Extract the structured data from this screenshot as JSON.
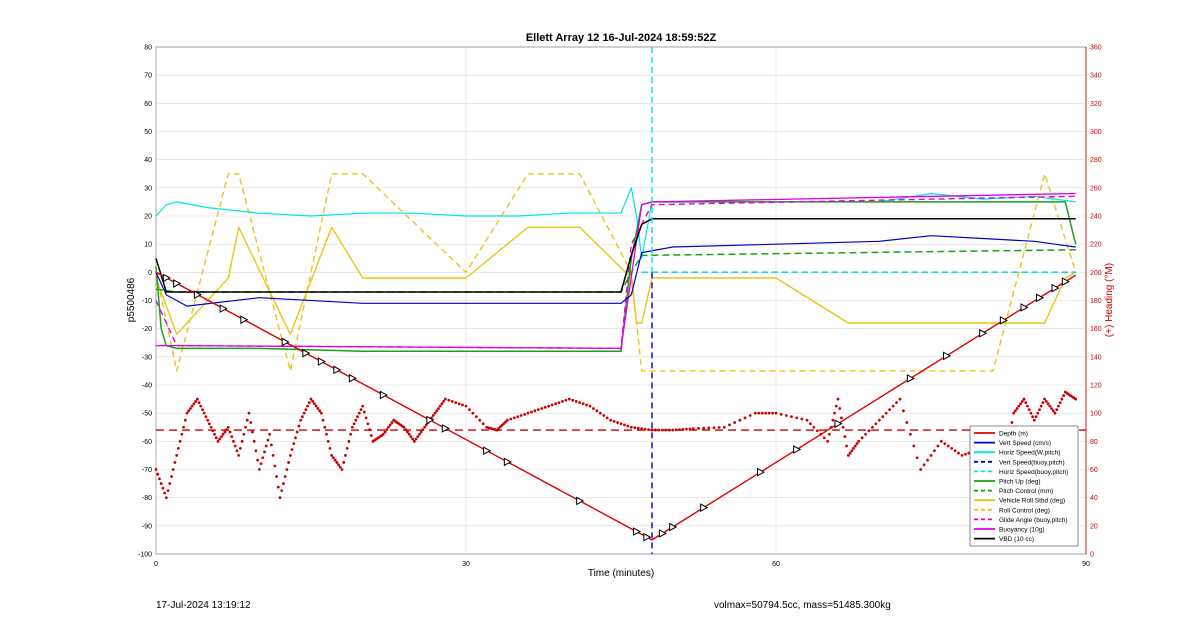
{
  "footer": {
    "left": "17-Jul-2024 13:19:12",
    "right": "volmax=50794.5cc, mass=51485.300kg"
  },
  "chart_data": {
    "type": "line",
    "title": "Ellett Array 12 16-Jul-2024 18:59:52Z",
    "xlabel": "Time (minutes)",
    "ylabel_left": "p5500486",
    "ylabel_right": "(+) Heading (°M)",
    "xlim": [
      0,
      90
    ],
    "ylim_left": [
      -100,
      80
    ],
    "ylim_right": [
      0,
      360
    ],
    "xticks": [
      0,
      30,
      60,
      90
    ],
    "yticks_left": [
      -100,
      -90,
      -80,
      -70,
      -60,
      -50,
      -40,
      -30,
      -20,
      -10,
      0,
      10,
      20,
      30,
      40,
      50,
      60,
      70,
      80
    ],
    "yticks_right": [
      0,
      20,
      40,
      60,
      80,
      100,
      120,
      140,
      160,
      180,
      200,
      220,
      240,
      260,
      280,
      300,
      320,
      340,
      360
    ],
    "apogee_time": 48,
    "heading_reference": 88,
    "colors": {
      "depth": "#dd0000",
      "vert": "#0000cc",
      "horiz": "#00e5e5",
      "pitch": "#1aa01a",
      "roll": "#e6c619",
      "glide": "#e000e0",
      "vbd": "#000000",
      "heading": "#cc0000",
      "right_axis": "#cc0000"
    },
    "legend": {
      "placement": "lower-right",
      "entries": [
        {
          "label": "Depth (m)",
          "color": "#dd0000",
          "dash": false
        },
        {
          "label": "Vert Speed (cm/s)",
          "color": "#0000cc",
          "dash": false
        },
        {
          "label": "Horiz Speed(W,pitch)",
          "color": "#00e5e5",
          "dash": false
        },
        {
          "label": "Vert Speed(buoy,pitch)",
          "color": "#0000cc",
          "dash": true
        },
        {
          "label": "Horiz Speed(buoy,pitch)",
          "color": "#00e5e5",
          "dash": true
        },
        {
          "label": "Pitch Up (deg)",
          "color": "#1aa01a",
          "dash": false
        },
        {
          "label": "Pitch Control (mm)",
          "color": "#1aa01a",
          "dash": true
        },
        {
          "label": "Vehicle Roll Stbd (deg)",
          "color": "#e6c619",
          "dash": false
        },
        {
          "label": "Roll Control (deg)",
          "color": "#e6c619",
          "dash": true
        },
        {
          "label": "Glide Angle (buoy,pitch)",
          "color": "#e000e0",
          "dash": true
        },
        {
          "label": "Buoyancy (10g)",
          "color": "#e000e0",
          "dash": false
        },
        {
          "label": "VBD (10 cc)",
          "color": "#000000",
          "dash": false
        }
      ]
    },
    "series": [
      {
        "name": "Depth (m)",
        "key": "depth",
        "x": [
          0,
          48,
          89
        ],
        "y": [
          0,
          -95,
          -1
        ]
      },
      {
        "name": "Vert Speed (cm/s)",
        "key": "vert",
        "x": [
          0,
          1,
          3,
          10,
          20,
          30,
          40,
          45,
          46,
          47,
          50,
          60,
          70,
          75,
          80,
          85,
          87,
          89
        ],
        "y": [
          0,
          -8,
          -12,
          -9,
          -11,
          -11,
          -11,
          -11,
          -8,
          7,
          9,
          10,
          11,
          13,
          12,
          11,
          10,
          9
        ]
      },
      {
        "name": "Horiz Speed(W,pitch)",
        "key": "horiz",
        "x": [
          0,
          1,
          2,
          5,
          10,
          15,
          20,
          25,
          30,
          35,
          40,
          45,
          46,
          46.5,
          47,
          48,
          55,
          60,
          70,
          75,
          80,
          85,
          89
        ],
        "y": [
          20,
          24,
          25,
          23,
          21,
          20,
          21,
          21,
          20,
          20,
          21,
          21,
          30,
          20,
          5,
          25,
          25,
          25,
          25,
          28,
          26,
          27,
          25
        ]
      },
      {
        "name": "Vert Speed(buoy,pitch)",
        "key": "vert_buoy",
        "x": [
          47,
          89
        ],
        "y": [
          0,
          0
        ]
      },
      {
        "name": "Horiz Speed(buoy,pitch)",
        "key": "horiz_buoy",
        "x": [
          47,
          89
        ],
        "y": [
          0,
          0
        ]
      },
      {
        "name": "Pitch Up (deg)",
        "key": "pitch",
        "x": [
          0,
          0.5,
          1,
          2,
          10,
          20,
          30,
          40,
          45,
          46,
          47,
          48,
          60,
          70,
          80,
          88,
          89
        ],
        "y": [
          2,
          -20,
          -26,
          -27,
          -27,
          -28,
          -28,
          -28,
          -28,
          5,
          24,
          25,
          25,
          25,
          25,
          25,
          10
        ]
      },
      {
        "name": "Pitch Control (mm)",
        "key": "pitch_ctrl",
        "x": [
          0,
          2,
          45,
          46,
          47,
          89
        ],
        "y": [
          -6,
          -7,
          -7,
          0,
          6,
          8
        ]
      },
      {
        "name": "Vehicle Roll Stbd (deg)",
        "key": "roll",
        "x": [
          0,
          2,
          7,
          8,
          13,
          17,
          20,
          30,
          36,
          41,
          46,
          46.5,
          47,
          48,
          50,
          60,
          67,
          73,
          81,
          86,
          88,
          89
        ],
        "y": [
          -2,
          -22,
          -2,
          16,
          -22,
          16,
          -2,
          -2,
          16,
          16,
          -2,
          -18,
          -18,
          -2,
          -2,
          -2,
          -18,
          -18,
          -18,
          -18,
          -2,
          0
        ]
      },
      {
        "name": "Roll Control (deg)",
        "key": "roll_ctrl",
        "x": [
          0,
          2,
          7,
          8,
          13,
          17,
          20,
          30,
          36,
          41,
          46,
          47,
          67,
          73,
          81,
          86,
          89
        ],
        "y": [
          0,
          -35,
          35,
          35,
          -35,
          35,
          35,
          0,
          35,
          35,
          0,
          -35,
          -35,
          -35,
          -35,
          35,
          0
        ]
      },
      {
        "name": "Glide Angle (buoy,pitch)",
        "key": "glide",
        "x": [
          0,
          2,
          45,
          46,
          48,
          89
        ],
        "y": [
          -10,
          -26,
          -27,
          10,
          24,
          27
        ]
      },
      {
        "name": "Buoyancy (10g)",
        "key": "buoyancy",
        "x": [
          0,
          2,
          45,
          47,
          48,
          89
        ],
        "y": [
          -26,
          -26,
          -27,
          24,
          25,
          28
        ]
      },
      {
        "name": "VBD (10 cc)",
        "key": "vbd",
        "x": [
          0,
          1,
          45,
          46,
          47,
          48,
          89
        ],
        "y": [
          5,
          -7,
          -7,
          6,
          17,
          19,
          19
        ]
      },
      {
        "name": "Heading (°M)",
        "key": "heading",
        "axis": "right",
        "x": [
          0,
          1,
          2,
          3,
          4,
          5,
          6,
          7,
          8,
          9,
          10,
          11,
          12,
          13,
          14,
          15,
          16,
          17,
          18,
          19,
          20,
          21,
          22,
          23,
          24,
          25,
          26,
          27,
          28,
          30,
          32,
          33,
          34,
          36,
          38,
          40,
          42,
          44,
          46,
          48,
          50,
          52,
          55,
          58,
          60,
          63,
          65,
          66,
          67,
          68,
          70,
          72,
          74,
          76,
          78,
          80,
          81,
          82,
          83,
          84,
          85,
          86,
          87,
          88,
          89
        ],
        "y": [
          60,
          40,
          70,
          100,
          110,
          95,
          80,
          90,
          70,
          100,
          60,
          85,
          40,
          70,
          95,
          110,
          100,
          70,
          60,
          90,
          105,
          80,
          85,
          95,
          90,
          80,
          90,
          100,
          110,
          105,
          90,
          88,
          95,
          100,
          105,
          110,
          105,
          95,
          90,
          88,
          88,
          89,
          90,
          100,
          100,
          95,
          80,
          110,
          70,
          80,
          95,
          110,
          60,
          80,
          70,
          75,
          90,
          60,
          100,
          110,
          95,
          110,
          100,
          115,
          110
        ]
      }
    ],
    "markers": {
      "description": "triangle markers along depth trace",
      "x": [
        1,
        2,
        4,
        6.5,
        8.5,
        12.5,
        14.5,
        16,
        17.5,
        19,
        22,
        26.5,
        28,
        32,
        34,
        41,
        46.5,
        47.5,
        49,
        50,
        53,
        58.5,
        62,
        66,
        73,
        76.5,
        80,
        82,
        84,
        85.5,
        87,
        88
      ]
    }
  }
}
